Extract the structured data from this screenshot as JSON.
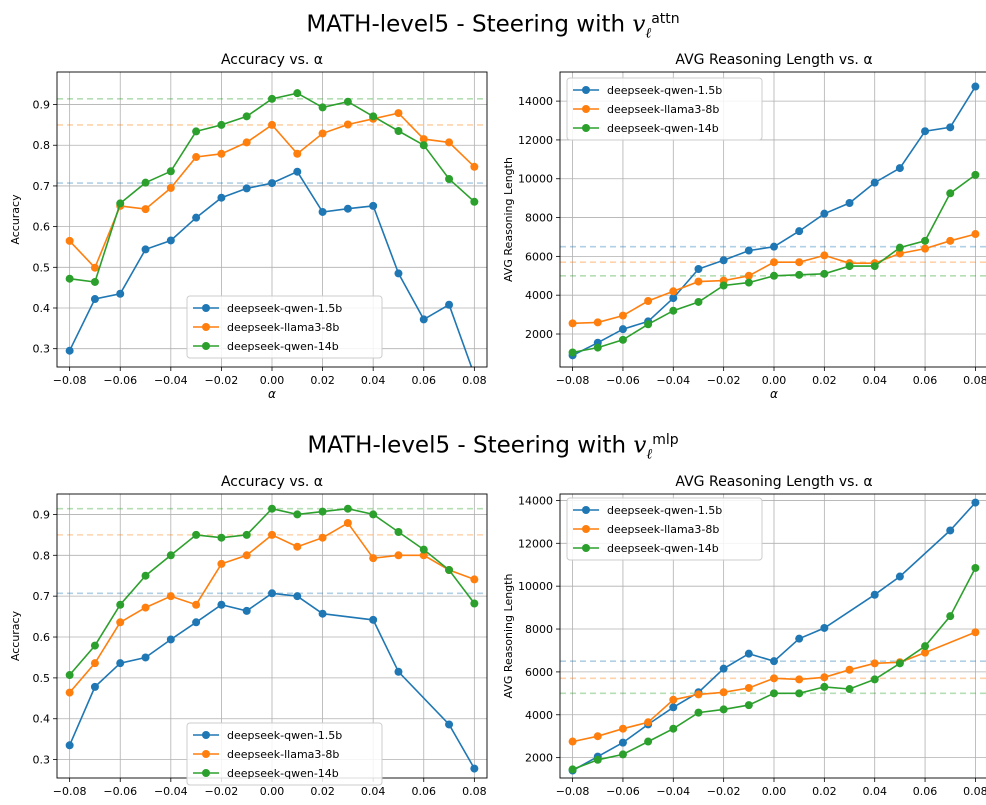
{
  "sections": [
    {
      "title_main": "MATH-level5 - Steering with ",
      "title_var": "v",
      "title_sub": "ℓ",
      "title_sup": "attn"
    },
    {
      "title_main": "MATH-level5 - Steering with ",
      "title_var": "v",
      "title_sub": "ℓ",
      "title_sup": "mlp"
    }
  ],
  "colors": {
    "deepseek-qwen-1.5b": "#1f77b4",
    "deepseek-llama3-8b": "#ff7f0e",
    "deepseek-qwen-14b": "#2ca02c"
  },
  "chart_data": [
    {
      "type": "line",
      "title": "Accuracy vs. α",
      "xlabel": "α",
      "ylabel": "Accuracy",
      "grid": true,
      "legend_position": "lower-center",
      "xlim": [
        -0.085,
        0.085
      ],
      "ylim": [
        0.255,
        0.98
      ],
      "xticks": [
        "−0.08",
        "−0.06",
        "−0.04",
        "−0.02",
        "0.00",
        "0.02",
        "0.04",
        "0.06",
        "0.08"
      ],
      "yticks": [
        "0.3",
        "0.4",
        "0.5",
        "0.6",
        "0.7",
        "0.8",
        "0.9"
      ],
      "x": [
        -0.08,
        -0.07,
        -0.06,
        -0.05,
        -0.04,
        -0.03,
        -0.02,
        -0.01,
        0.0,
        0.01,
        0.02,
        0.03,
        0.04,
        0.05,
        0.06,
        0.07,
        0.08
      ],
      "series": [
        {
          "name": "deepseek-qwen-1.5b",
          "baseline": 0.707,
          "values": [
            0.295,
            0.422,
            0.435,
            0.544,
            0.566,
            0.622,
            0.671,
            0.694,
            0.707,
            0.735,
            0.636,
            0.644,
            0.651,
            0.485,
            0.372,
            0.408,
            0.235
          ]
        },
        {
          "name": "deepseek-llama3-8b",
          "baseline": 0.85,
          "values": [
            0.565,
            0.499,
            0.651,
            0.643,
            0.695,
            0.771,
            0.779,
            0.807,
            0.85,
            0.779,
            0.829,
            0.851,
            0.865,
            0.879,
            0.815,
            0.807,
            0.747
          ]
        },
        {
          "name": "deepseek-qwen-14b",
          "baseline": 0.914,
          "values": [
            0.472,
            0.464,
            0.657,
            0.708,
            0.736,
            0.834,
            0.85,
            0.871,
            0.914,
            0.928,
            0.893,
            0.907,
            0.871,
            0.835,
            0.8,
            0.717,
            0.661
          ]
        }
      ]
    },
    {
      "type": "line",
      "title": "AVG Reasoning Length vs. α",
      "xlabel": "α",
      "ylabel": "AVG Reasoning Length",
      "grid": true,
      "legend_position": "upper-left",
      "xlim": [
        -0.085,
        0.085
      ],
      "ylim": [
        300,
        15500
      ],
      "xticks": [
        "−0.08",
        "−0.06",
        "−0.04",
        "−0.02",
        "0.00",
        "0.02",
        "0.04",
        "0.06",
        "0.08"
      ],
      "yticks": [
        "2000",
        "4000",
        "6000",
        "8000",
        "10000",
        "12000",
        "14000"
      ],
      "x": [
        -0.08,
        -0.07,
        -0.06,
        -0.05,
        -0.04,
        -0.03,
        -0.02,
        -0.01,
        0.0,
        0.01,
        0.02,
        0.03,
        0.04,
        0.05,
        0.06,
        0.07,
        0.08
      ],
      "series": [
        {
          "name": "deepseek-qwen-1.5b",
          "baseline": 6500,
          "values": [
            900,
            1550,
            2250,
            2650,
            3850,
            5350,
            5800,
            6300,
            6500,
            7300,
            8200,
            8750,
            9800,
            10550,
            12450,
            12650,
            14750
          ]
        },
        {
          "name": "deepseek-llama3-8b",
          "baseline": 5700,
          "values": [
            2550,
            2600,
            2950,
            3700,
            4200,
            4700,
            4750,
            5000,
            5700,
            5700,
            6050,
            5650,
            5650,
            6150,
            6400,
            6800,
            7150
          ]
        },
        {
          "name": "deepseek-qwen-14b",
          "baseline": 5000,
          "values": [
            1050,
            1300,
            1700,
            2500,
            3200,
            3650,
            4500,
            4650,
            5000,
            5050,
            5100,
            5500,
            5500,
            6450,
            6800,
            9250,
            10200
          ]
        }
      ]
    },
    {
      "type": "line",
      "title": "Accuracy vs. α",
      "xlabel": "",
      "ylabel": "Accuracy",
      "grid": true,
      "legend_position": "lower-center",
      "xlim": [
        -0.085,
        0.085
      ],
      "ylim": [
        0.255,
        0.95
      ],
      "xticks": [
        "−0.08",
        "−0.06",
        "−0.04",
        "−0.02",
        "0.00",
        "0.02",
        "0.04",
        "0.06",
        "0.08"
      ],
      "yticks": [
        "0.3",
        "0.4",
        "0.5",
        "0.6",
        "0.7",
        "0.8",
        "0.9"
      ],
      "x": [
        -0.08,
        -0.07,
        -0.06,
        -0.05,
        -0.04,
        -0.03,
        -0.02,
        -0.01,
        0.0,
        0.01,
        0.02,
        0.03,
        0.04,
        0.05,
        0.06,
        0.07,
        0.08
      ],
      "series": [
        {
          "name": "deepseek-qwen-1.5b",
          "baseline": 0.707,
          "values": [
            0.335,
            0.478,
            0.536,
            0.55,
            0.594,
            0.636,
            0.679,
            0.664,
            0.707,
            0.7,
            0.657,
            null,
            0.642,
            0.515,
            null,
            0.386,
            0.278
          ]
        },
        {
          "name": "deepseek-llama3-8b",
          "baseline": 0.85,
          "values": [
            0.464,
            0.536,
            0.636,
            0.672,
            0.7,
            0.679,
            0.779,
            0.8,
            0.85,
            0.821,
            0.843,
            0.879,
            0.793,
            0.8,
            0.8,
            0.764,
            0.741
          ]
        },
        {
          "name": "deepseek-qwen-14b",
          "baseline": 0.914,
          "values": [
            0.507,
            0.579,
            0.679,
            0.75,
            0.8,
            0.85,
            0.843,
            0.85,
            0.914,
            0.9,
            0.907,
            0.914,
            0.9,
            0.857,
            0.814,
            0.764,
            0.682
          ]
        }
      ]
    },
    {
      "type": "line",
      "title": "AVG Reasoning Length vs. α",
      "xlabel": "",
      "ylabel": "AVG Reasoning Length",
      "grid": true,
      "legend_position": "upper-left",
      "xlim": [
        -0.085,
        0.085
      ],
      "ylim": [
        1050,
        14300
      ],
      "xticks": [
        "−0.08",
        "−0.06",
        "−0.04",
        "−0.02",
        "0.00",
        "0.02",
        "0.04",
        "0.06",
        "0.08"
      ],
      "yticks": [
        "2000",
        "4000",
        "6000",
        "8000",
        "10000",
        "12000",
        "14000"
      ],
      "x": [
        -0.08,
        -0.07,
        -0.06,
        -0.05,
        -0.04,
        -0.03,
        -0.02,
        -0.01,
        0.0,
        0.01,
        0.02,
        0.03,
        0.04,
        0.05,
        0.06,
        0.07,
        0.08
      ],
      "series": [
        {
          "name": "deepseek-qwen-1.5b",
          "baseline": 6500,
          "values": [
            1400,
            2050,
            2700,
            3550,
            4350,
            5050,
            6150,
            6850,
            6500,
            7550,
            8050,
            null,
            9600,
            10450,
            null,
            12600,
            13900
          ]
        },
        {
          "name": "deepseek-llama3-8b",
          "baseline": 5700,
          "values": [
            2750,
            3000,
            3350,
            3650,
            4700,
            4950,
            5050,
            5250,
            5700,
            5650,
            5750,
            6100,
            6400,
            6450,
            6900,
            null,
            7850
          ]
        },
        {
          "name": "deepseek-qwen-14b",
          "baseline": 5000,
          "values": [
            1450,
            1900,
            2150,
            2750,
            3350,
            4100,
            4250,
            4450,
            5000,
            5000,
            5300,
            5200,
            5650,
            6400,
            7200,
            8600,
            10850
          ]
        }
      ]
    }
  ]
}
